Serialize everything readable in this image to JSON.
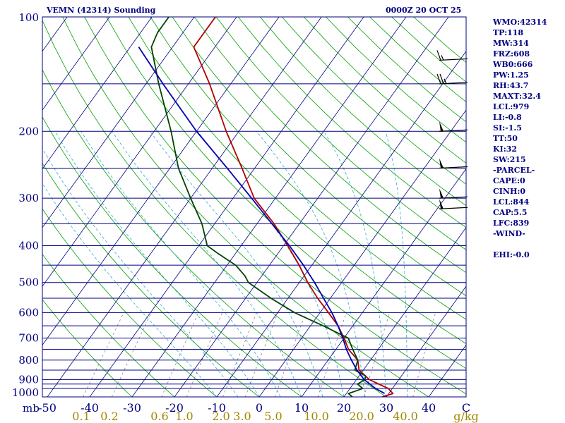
{
  "header": {
    "station_title": "VEMN (42314) Sounding",
    "valid_time": "0000Z 20 OCT 25"
  },
  "indices": [
    "WMO:42314",
    "TP:118",
    "MW:314",
    "FRZ:608",
    "WB0:666",
    "PW:1.25",
    "RH:43.7",
    "MAXT:32.4",
    "LCL:979",
    "LI:-0.8",
    "SI:-1.5",
    "TT:50",
    "KI:32",
    "SW:215",
    "-PARCEL-",
    "CAPE:0",
    "CINH:0",
    "LCL:844",
    "CAP:5.5",
    "LFC:839",
    "-WIND-",
    "EHI:-0.0"
  ],
  "chart_data": {
    "type": "line",
    "title": "VEMN (42314) Sounding",
    "xlabel": "",
    "ylabel": "mb",
    "xlim": [
      -50,
      50
    ],
    "ylim": [
      1000,
      100
    ],
    "y_scale": "log",
    "pressure_tick_labels": [
      "100",
      "200",
      "300",
      "400",
      "500",
      "600",
      "700",
      "800",
      "900",
      "1000"
    ],
    "pressure_tick_values": [
      100,
      200,
      300,
      400,
      500,
      600,
      700,
      800,
      900,
      1000
    ],
    "pressure_lines": [
      100,
      150,
      200,
      250,
      300,
      350,
      400,
      450,
      500,
      550,
      600,
      650,
      700,
      750,
      800,
      850,
      900,
      925,
      950,
      1000
    ],
    "temp_tick_labels": [
      "-50",
      "-40",
      "-30",
      "-20",
      "-10",
      "0",
      "10",
      "20",
      "30",
      "40",
      "C"
    ],
    "temp_tick_values": [
      -50,
      -40,
      -30,
      -20,
      -10,
      0,
      10,
      20,
      30,
      40
    ],
    "mixing_ratio_labels": [
      "0.1",
      "0.2",
      "0.6",
      "1.0",
      "2.0",
      "3.0",
      "5.0",
      "10.0",
      "20.0",
      "40.0",
      "g/kg"
    ],
    "colors": {
      "pressure_lines": "#00007f",
      "isotherms": "#00007f",
      "dry_adiabats": "#00a000",
      "moist_adiabats": "#33aacc",
      "mixing_ratio": "#777777",
      "temperature": "#b00000",
      "dewpoint": "#004400",
      "parcel": "#0000b0",
      "wind_barbs": "#000000",
      "labels": "#00007f",
      "mixing_labels": "#a08800"
    },
    "series": [
      {
        "key": "temperature",
        "p": [
          1000,
          980,
          950,
          925,
          900,
          850,
          800,
          750,
          700,
          650,
          600,
          550,
          500,
          450,
          400,
          350,
          300,
          250,
          200,
          150,
          120,
          100
        ],
        "t": [
          29,
          31,
          29,
          26,
          23,
          19,
          17,
          13,
          10,
          6.5,
          2,
          -3,
          -8,
          -13,
          -19,
          -26,
          -35,
          -43,
          -53,
          -65,
          -75,
          -75
        ]
      },
      {
        "key": "dewpoint",
        "p": [
          1000,
          980,
          950,
          925,
          900,
          880,
          850,
          800,
          750,
          700,
          650,
          600,
          550,
          500,
          480,
          450,
          420,
          400,
          350,
          300,
          250,
          200,
          150,
          120,
          110,
          100
        ],
        "t": [
          22,
          20.5,
          23,
          21,
          22,
          21.5,
          18,
          17,
          14,
          11,
          3,
          -6,
          -14,
          -22,
          -24,
          -28,
          -34,
          -38,
          -43,
          -50,
          -58,
          -66,
          -77,
          -85,
          -86,
          -86
        ]
      },
      {
        "key": "parcel",
        "p": [
          979,
          950,
          900,
          850,
          800,
          750,
          700,
          650,
          600,
          550,
          500,
          450,
          400,
          350,
          300,
          250,
          200,
          150,
          120
        ],
        "t": [
          29,
          26,
          21.8,
          18.5,
          15.5,
          12.5,
          9.7,
          6.5,
          2.8,
          -1.6,
          -6.4,
          -12,
          -18.6,
          -26.5,
          -35.6,
          -46.5,
          -60,
          -76,
          -88
        ]
      }
    ],
    "wind_barbs": [
      {
        "p": 130,
        "kt": 15
      },
      {
        "p": 150,
        "kt": 25
      },
      {
        "p": 200,
        "kt": 50
      },
      {
        "p": 250,
        "kt": 50
      },
      {
        "p": 300,
        "kt": 50
      },
      {
        "p": 320,
        "kt": 50
      }
    ],
    "grid": true
  }
}
